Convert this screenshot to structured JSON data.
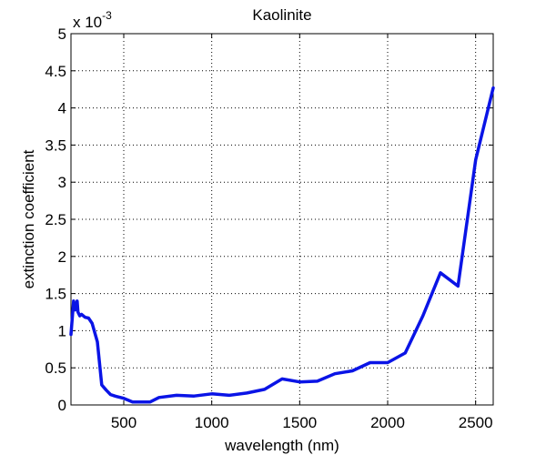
{
  "chart_data": {
    "type": "line",
    "title": "Kaolinite",
    "xlabel": "wavelength (nm)",
    "ylabel": "extinction coefficient",
    "y_multiplier_label": "x 10",
    "y_multiplier_exponent": "-3",
    "xlim": [
      200,
      2600
    ],
    "ylim": [
      0,
      5
    ],
    "grid": true,
    "x_ticks": [
      500,
      1000,
      1500,
      2000,
      2500
    ],
    "y_ticks": [
      0,
      0.5,
      1,
      1.5,
      2,
      2.5,
      3,
      3.5,
      4,
      4.5,
      5
    ],
    "color": "#0a14e6",
    "series": [
      {
        "x": [
          200,
          215,
          225,
          235,
          240,
          250,
          260,
          280,
          300,
          320,
          350,
          375,
          400,
          425,
          450,
          500,
          550,
          600,
          650,
          700,
          800,
          900,
          1000,
          1100,
          1200,
          1300,
          1400,
          1500,
          1600,
          1700,
          1800,
          1900,
          2000,
          2100,
          2200,
          2300,
          2400,
          2500,
          2600
        ],
        "values": [
          0.95,
          1.4,
          1.28,
          1.4,
          1.25,
          1.2,
          1.22,
          1.18,
          1.17,
          1.1,
          0.85,
          0.27,
          0.2,
          0.14,
          0.12,
          0.09,
          0.04,
          0.04,
          0.04,
          0.1,
          0.13,
          0.12,
          0.15,
          0.13,
          0.16,
          0.21,
          0.35,
          0.31,
          0.32,
          0.42,
          0.46,
          0.57,
          0.57,
          0.7,
          1.2,
          1.78,
          1.6,
          3.3,
          4.27
        ]
      }
    ]
  }
}
